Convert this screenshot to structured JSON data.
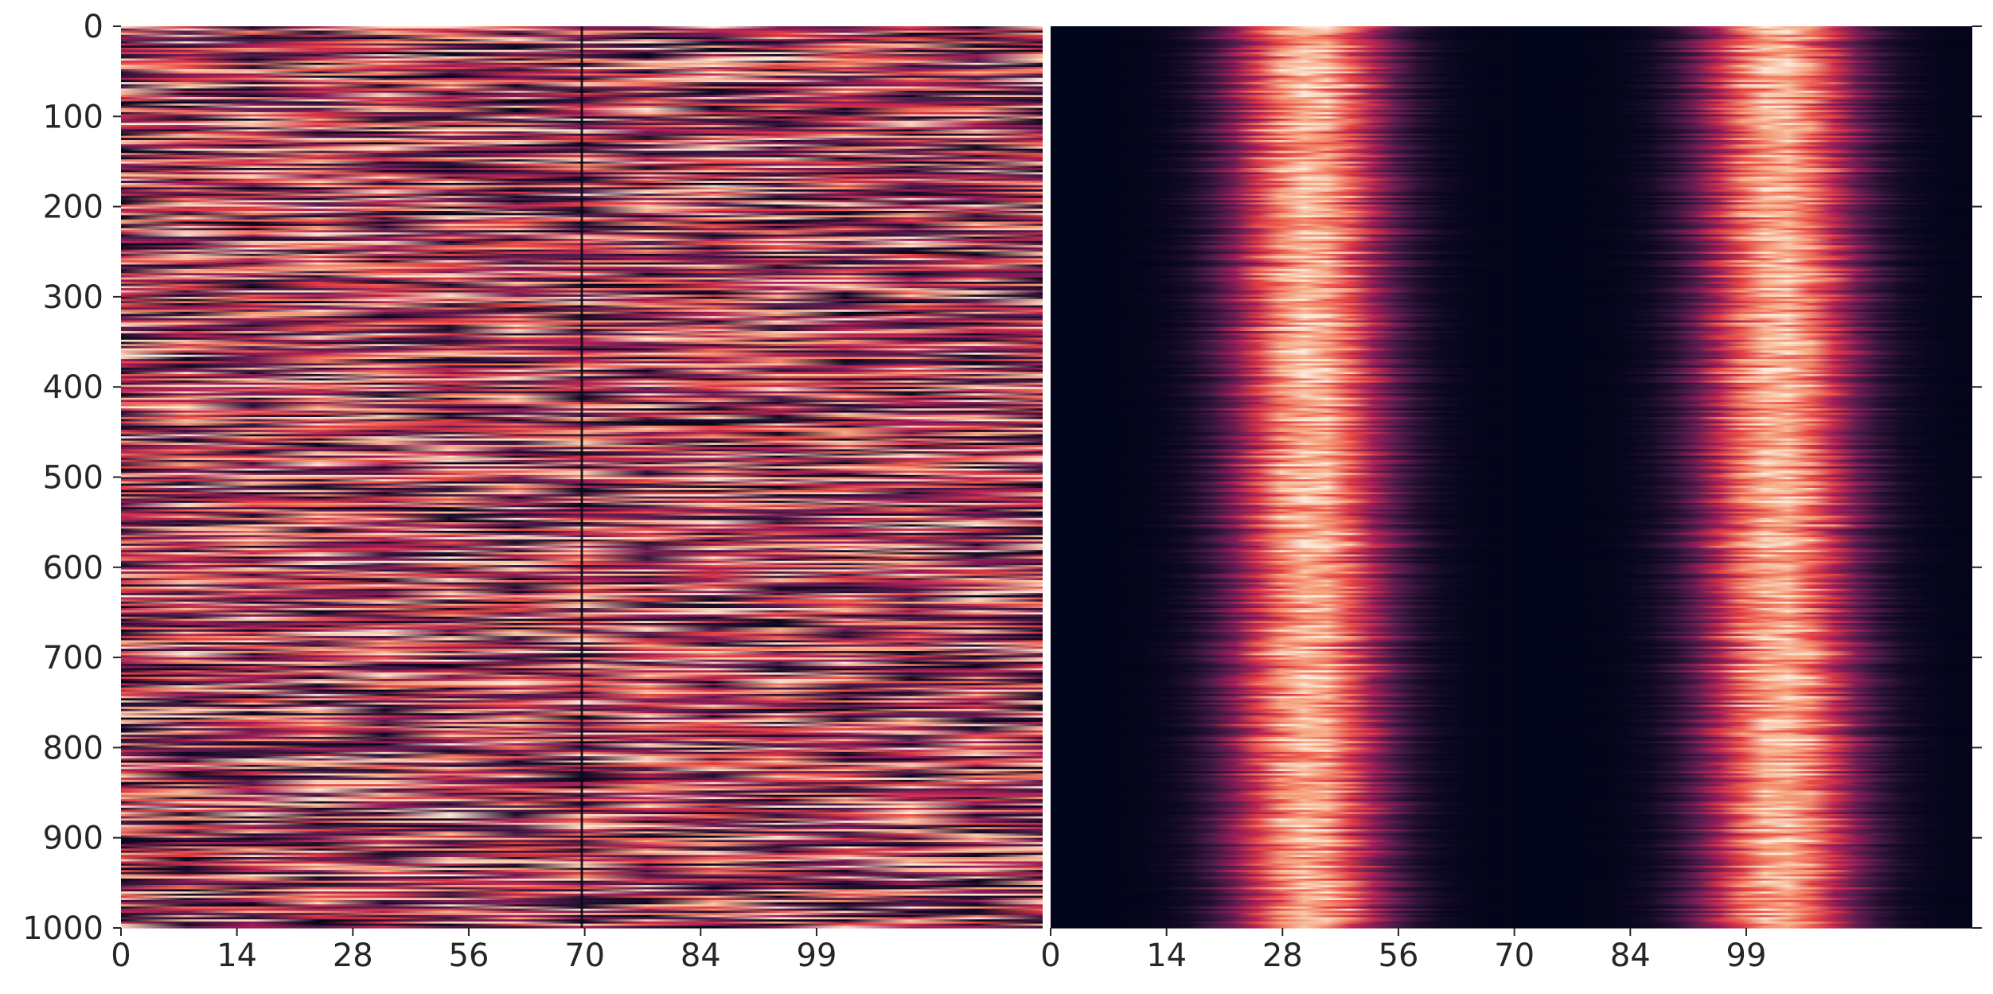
{
  "chart_data": [
    {
      "type": "heatmap",
      "panel": "left",
      "title": "",
      "xlabel": "",
      "ylabel": "",
      "x_tick_labels": [
        "0",
        "14",
        "28",
        "56",
        "70",
        "84",
        "99"
      ],
      "y_tick_labels": [
        "0",
        "100",
        "200",
        "300",
        "400",
        "500",
        "600",
        "700",
        "800",
        "900",
        "1000"
      ],
      "ylim": [
        0,
        1000
      ],
      "rows": 1000,
      "columns": 112,
      "y_axis_inverted": true,
      "colormap": "rocket",
      "colormap_stops": [
        "#03051a",
        "#4c1d4b",
        "#a11a5b",
        "#e83f3f",
        "#f6a47c",
        "#faebdd"
      ],
      "pattern": "high-frequency noise; each row is a horizontal streak of independent intensity, with a visible seam at the column midpoint",
      "seam_column_fraction": 0.5
    },
    {
      "type": "heatmap",
      "panel": "right",
      "title": "",
      "xlabel": "",
      "ylabel": "",
      "x_tick_labels": [
        "0",
        "14",
        "28",
        "56",
        "70",
        "84",
        "99"
      ],
      "y_tick_side": "right",
      "ylim": [
        0,
        1000
      ],
      "rows": 1000,
      "columns": 112,
      "y_axis_inverted": true,
      "colormap": "rocket",
      "colormap_stops": [
        "#03051a",
        "#4c1d4b",
        "#a11a5b",
        "#e83f3f",
        "#f6a47c",
        "#faebdd"
      ],
      "pattern": "two bright vertical bands over a dark background, centred near column labels 28 and 84, wobbling slightly row to row",
      "band_centers_fraction": [
        0.28,
        0.79
      ],
      "band_halfwidth_fraction": 0.09,
      "seam_column_fraction": 0.5
    }
  ]
}
